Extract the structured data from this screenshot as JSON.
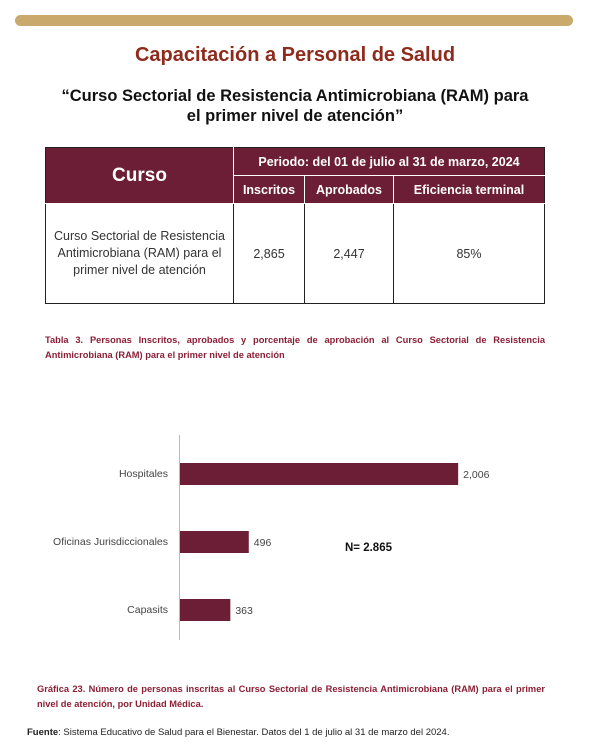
{
  "header": {
    "title": "Capacitación a Personal de Salud",
    "subtitle": "“Curso Sectorial de Resistencia Antimicrobiana (RAM) para el primer nivel de atención”"
  },
  "table": {
    "header": {
      "curso": "Curso",
      "periodo": "Periodo: del 01 de  julio al 31 de marzo, 2024",
      "columns": [
        "Inscritos",
        "Aprobados",
        "Eficiencia terminal"
      ]
    },
    "rows": [
      [
        "Curso Sectorial de Resistencia Antimicrobiana (RAM) para el primer nivel de atención",
        "2,865",
        "2,447",
        "85%"
      ]
    ],
    "caption": "Tabla 3. Personas Inscritos, aprobados y porcentaje de aprobación al Curso Sectorial de Resistencia Antimicrobiana (RAM) para el primer nivel de atención"
  },
  "chart_data": {
    "type": "bar",
    "orientation": "horizontal",
    "categories": [
      "Hospitales",
      "Oficinas Jurisdiccionales",
      "Capasits"
    ],
    "values": [
      2006,
      496,
      363
    ],
    "value_labels": [
      "2,006",
      "496",
      "363"
    ],
    "color": "#6b1e35",
    "annotation": "N= 2.865",
    "caption": "Gráfica 23. Número de personas inscritas al Curso Sectorial de Resistencia Antimicrobiana (RAM) para el primer nivel de atención, por Unidad Médica."
  },
  "source": {
    "label": "Fuente",
    "text": ": Sistema Educativo de Salud para el Bienestar. Datos del 1 de julio al 31 de marzo del 2024."
  }
}
